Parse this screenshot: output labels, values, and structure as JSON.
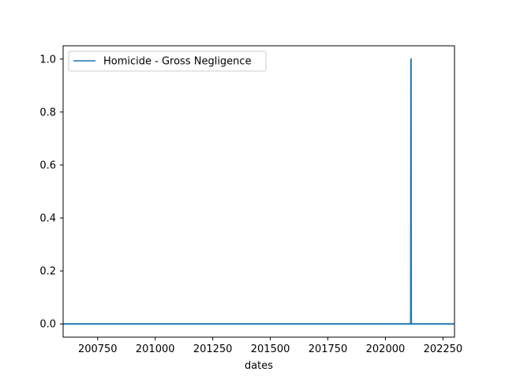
{
  "chart_data": {
    "type": "line",
    "xlabel": "dates",
    "ylabel": "",
    "xlim": [
      200600,
      202300
    ],
    "ylim": [
      -0.05,
      1.05
    ],
    "xticks": [
      200750,
      201000,
      201250,
      201500,
      201750,
      202000,
      202250
    ],
    "yticks": [
      0.0,
      0.2,
      0.4,
      0.6,
      0.8,
      1.0
    ],
    "ytick_labels": [
      "0.0",
      "0.2",
      "0.4",
      "0.6",
      "0.8",
      "1.0"
    ],
    "grid": false,
    "legend_position": "top-left",
    "series": [
      {
        "name": "Homicide - Gross Negligence",
        "color": "#1f77b4",
        "x": [
          200601,
          202110,
          202111,
          202112,
          202301
        ],
        "y": [
          0,
          0,
          1,
          0,
          0
        ]
      }
    ]
  }
}
